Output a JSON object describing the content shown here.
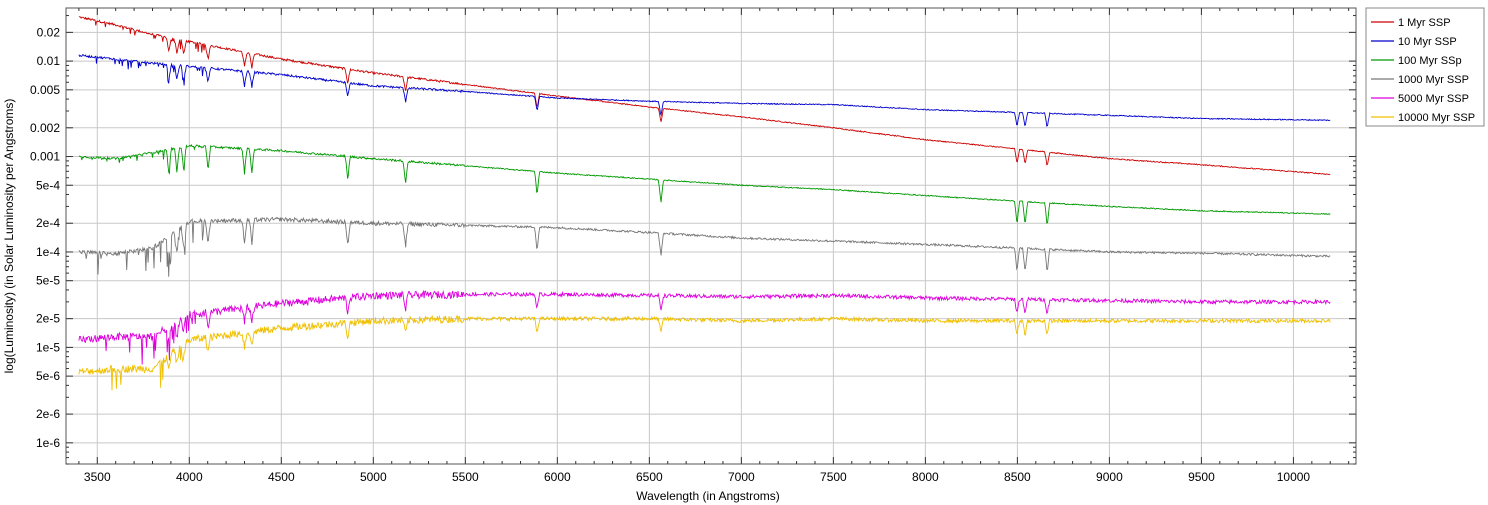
{
  "chart_data": {
    "type": "line",
    "title": "",
    "xlabel": "Wavelength (in Angstroms)",
    "ylabel": "log(Luminosity) (in Solar Luminosity per Angstroms)",
    "xlim": [
      3330,
      10340
    ],
    "ylim": [
      6e-07,
      0.036
    ],
    "y_scale": "log",
    "grid": true,
    "legend_position": "right-top",
    "x_ticks": [
      3500,
      4000,
      4500,
      5000,
      5500,
      6000,
      6500,
      7000,
      7500,
      8000,
      8500,
      9000,
      9500,
      10000
    ],
    "x_tick_labels": [
      "3500",
      "4000",
      "4500",
      "5000",
      "5500",
      "6000",
      "6500",
      "7000",
      "7500",
      "8000",
      "8500",
      "9000",
      "9500",
      "10000"
    ],
    "y_ticks": [
      0.02,
      0.01,
      0.005,
      0.002,
      0.001,
      0.0005,
      0.0002,
      0.0001,
      5e-05,
      2e-05,
      1e-05,
      5e-06,
      2e-06,
      1e-06
    ],
    "y_tick_labels": [
      "0.02",
      "0.01",
      "0.005",
      "0.002",
      "0.001",
      "5e-4",
      "2e-4",
      "1e-4",
      "5e-5",
      "2e-5",
      "1e-5",
      "5e-6",
      "2e-6",
      "1e-6"
    ],
    "series": [
      {
        "name": "1 Myr SSP",
        "color": "#cc0000",
        "x": [
          3400,
          3600,
          3800,
          4000,
          4500,
          5000,
          5500,
          6000,
          6500,
          7000,
          7500,
          8000,
          8500,
          9000,
          9500,
          10200
        ],
        "y": [
          0.029,
          0.024,
          0.019,
          0.016,
          0.0105,
          0.0075,
          0.0057,
          0.0043,
          0.0033,
          0.0026,
          0.002,
          0.0015,
          0.0012,
          0.00095,
          0.00082,
          0.00065
        ]
      },
      {
        "name": "10 Myr SSP",
        "color": "#0000cc",
        "x": [
          3400,
          3600,
          3800,
          4000,
          4500,
          5000,
          5500,
          6000,
          6500,
          7000,
          7500,
          8000,
          8500,
          9000,
          9500,
          10200
        ],
        "y": [
          0.0115,
          0.0105,
          0.0095,
          0.0088,
          0.0072,
          0.0055,
          0.0048,
          0.0041,
          0.0038,
          0.0036,
          0.0035,
          0.0031,
          0.0029,
          0.0027,
          0.0025,
          0.0024
        ]
      },
      {
        "name": "100 Myr SSp",
        "color": "#009900",
        "x": [
          3400,
          3600,
          3800,
          4000,
          4500,
          5000,
          5500,
          6000,
          6500,
          7000,
          7500,
          8000,
          8500,
          9000,
          9500,
          10200
        ],
        "y": [
          0.001,
          0.00095,
          0.0011,
          0.0013,
          0.00115,
          0.00095,
          0.0008,
          0.00067,
          0.00058,
          0.0005,
          0.00045,
          0.00039,
          0.00034,
          0.0003,
          0.00027,
          0.00025
        ]
      },
      {
        "name": "1000 Myr SSP",
        "color": "#777777",
        "x": [
          3400,
          3600,
          3800,
          4000,
          4500,
          5000,
          5500,
          6000,
          6500,
          7000,
          7500,
          8000,
          8500,
          9000,
          9500,
          10200
        ],
        "y": [
          0.0001,
          9.5e-05,
          0.00011,
          0.00021,
          0.00022,
          0.0002,
          0.00019,
          0.00018,
          0.00016,
          0.00014,
          0.00013,
          0.00012,
          0.00011,
          0.0001,
          9.7e-05,
          9e-05
        ]
      },
      {
        "name": "5000 Myr SSP",
        "color": "#dd00dd",
        "x": [
          3400,
          3600,
          3800,
          4000,
          4500,
          5000,
          5500,
          6000,
          6500,
          7000,
          7500,
          8000,
          8500,
          9000,
          9500,
          10200
        ],
        "y": [
          1.2e-05,
          1.3e-05,
          1.3e-05,
          2.2e-05,
          2.9e-05,
          3.5e-05,
          3.6e-05,
          3.6e-05,
          3.5e-05,
          3.4e-05,
          3.5e-05,
          3.3e-05,
          3.2e-05,
          3.1e-05,
          3e-05,
          3e-05
        ]
      },
      {
        "name": "10000 Myr SSP",
        "color": "#f0c000",
        "x": [
          3400,
          3600,
          3800,
          4000,
          4500,
          5000,
          5500,
          6000,
          6500,
          7000,
          7500,
          8000,
          8500,
          9000,
          9500,
          10200
        ],
        "y": [
          5.5e-06,
          6e-06,
          6e-06,
          1.2e-05,
          1.6e-05,
          1.9e-05,
          2e-05,
          2e-05,
          2e-05,
          1.9e-05,
          2e-05,
          1.9e-05,
          1.9e-05,
          1.9e-05,
          1.9e-05,
          1.9e-05
        ]
      }
    ]
  }
}
